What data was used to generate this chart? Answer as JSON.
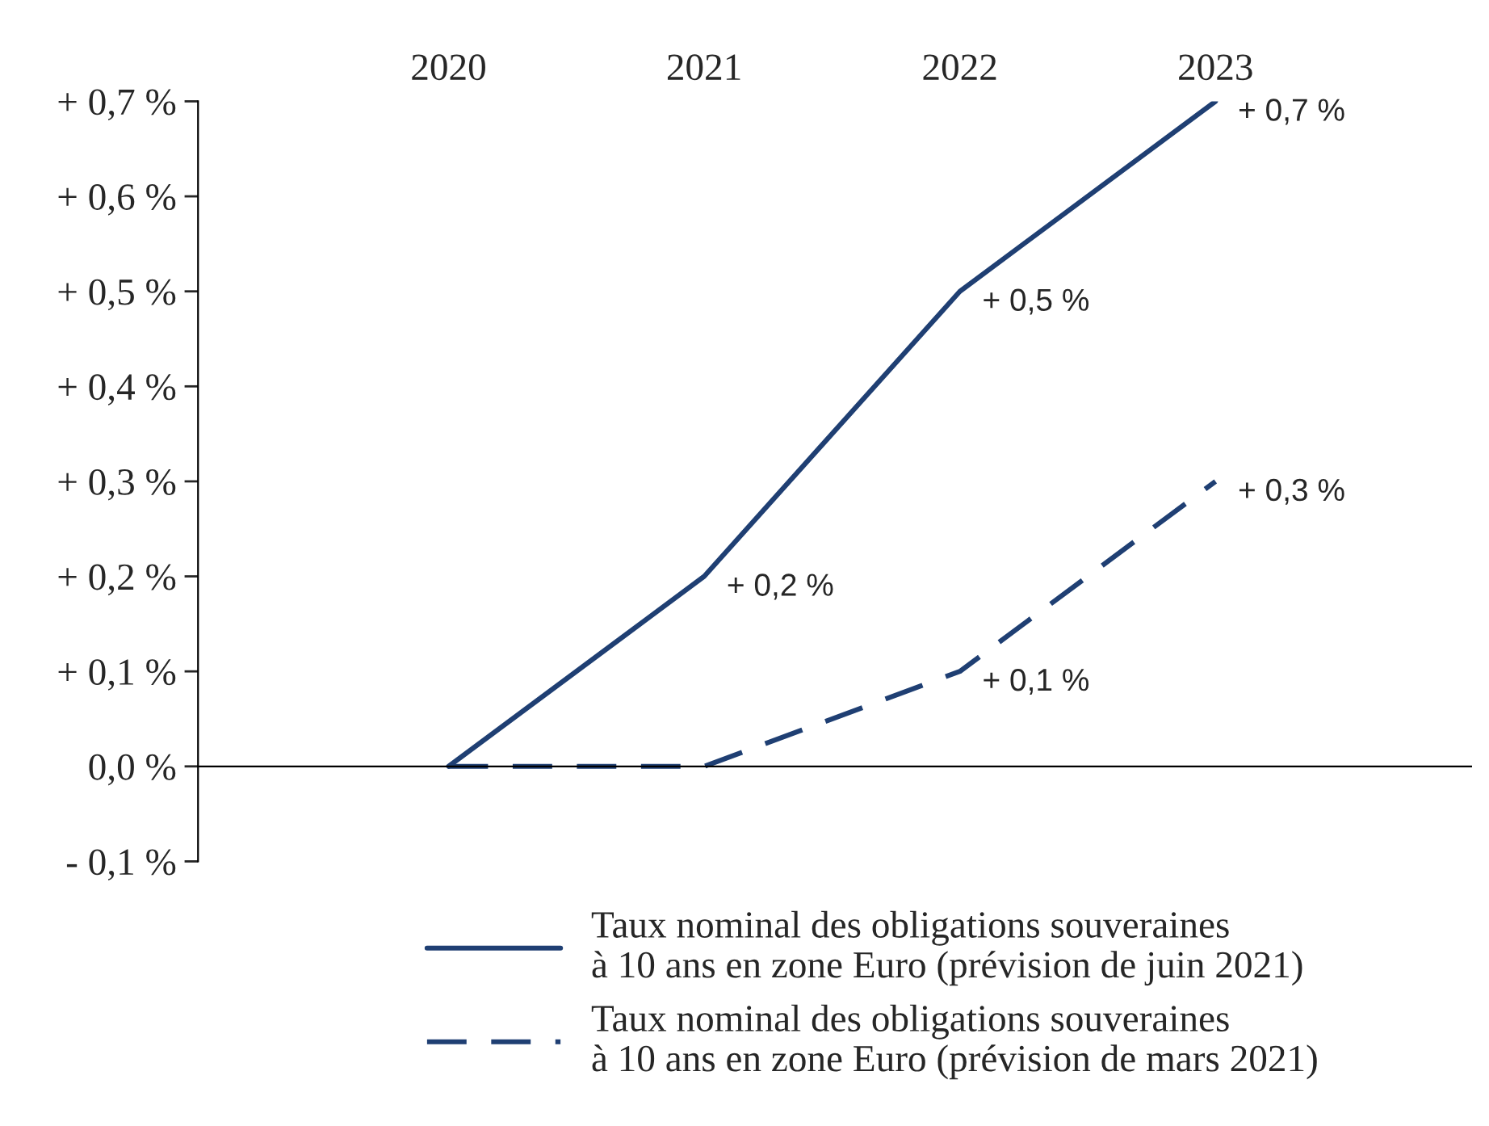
{
  "chart_data": {
    "type": "line",
    "categories": [
      "2020",
      "2021",
      "2022",
      "2023"
    ],
    "series": [
      {
        "name": "Taux nominal des obligations souveraines\nà 10 ans en zone Euro (prévision de juin 2021)",
        "color": "#1f3f73",
        "line_style": "solid",
        "values": [
          0.0,
          0.2,
          0.5,
          0.7
        ],
        "value_labels": [
          null,
          "+ 0,2 %",
          "+ 0,5 %",
          "+ 0,7 %"
        ]
      },
      {
        "name": "Taux nominal des obligations souveraines\nà 10 ans en zone Euro (prévision de mars 2021)",
        "color": "#1f3f73",
        "line_style": "dashed",
        "values": [
          0.0,
          0.0,
          0.1,
          0.3
        ],
        "value_labels": [
          null,
          null,
          "+ 0,1 %",
          "+ 0,3 %"
        ]
      }
    ],
    "ylim": [
      -0.1,
      0.7
    ],
    "yticks": [
      {
        "value": -0.1,
        "label": "- 0,1 %"
      },
      {
        "value": 0.0,
        "label": "0,0 %"
      },
      {
        "value": 0.1,
        "label": "+ 0,1 %"
      },
      {
        "value": 0.2,
        "label": "+ 0,2 %"
      },
      {
        "value": 0.3,
        "label": "+ 0,3 %"
      },
      {
        "value": 0.4,
        "label": "+ 0,4 %"
      },
      {
        "value": 0.5,
        "label": "+ 0,5 %"
      },
      {
        "value": 0.6,
        "label": "+ 0,6 %"
      },
      {
        "value": 0.7,
        "label": "+ 0,7 %"
      }
    ],
    "marker": "none",
    "legend": "bottom"
  }
}
